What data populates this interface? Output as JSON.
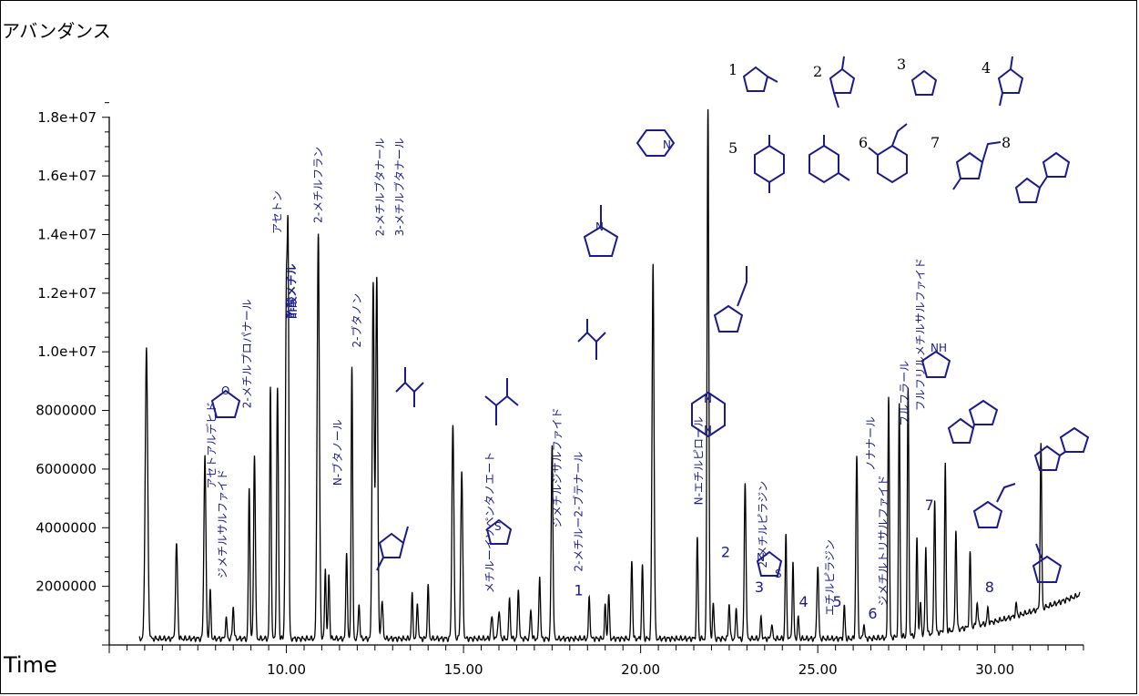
{
  "chart_data": {
    "type": "line",
    "title": "",
    "ylabel": "アバンダンス",
    "xlabel": "Time",
    "xlim": [
      5.0,
      32.5
    ],
    "ylim": [
      0,
      18500000
    ],
    "x_ticks": [
      "10.00",
      "15.00",
      "20.00",
      "25.00",
      "30.00"
    ],
    "x_tick_values": [
      10,
      15,
      20,
      25,
      30
    ],
    "y_ticks": [
      "2000000",
      "4000000",
      "6000000",
      "8000000",
      "1.0e+07",
      "1.2e+07",
      "1.4e+07",
      "1.6e+07",
      "1.8e+07"
    ],
    "y_tick_values": [
      2000000,
      4000000,
      6000000,
      8000000,
      10000000,
      12000000,
      14000000,
      16000000,
      18000000
    ],
    "line_color": "#000000",
    "annotation_color": "#1a1a8c",
    "peaks": [
      {
        "x": 6.05,
        "y": 9900000,
        "w": 0.05
      },
      {
        "x": 6.9,
        "y": 3200000,
        "w": 0.04
      },
      {
        "x": 7.7,
        "y": 6300000,
        "w": 0.04
      },
      {
        "x": 7.85,
        "y": 1600000,
        "w": 0.03
      },
      {
        "x": 8.3,
        "y": 700000,
        "w": 0.03
      },
      {
        "x": 8.5,
        "y": 1100000,
        "w": 0.03
      },
      {
        "x": 8.95,
        "y": 5100000,
        "w": 0.03
      },
      {
        "x": 9.1,
        "y": 6300000,
        "w": 0.035
      },
      {
        "x": 9.55,
        "y": 8600000,
        "w": 0.03
      },
      {
        "x": 9.75,
        "y": 8500000,
        "w": 0.035
      },
      {
        "x": 10.0,
        "y": 11700000,
        "w": 0.04
      },
      {
        "x": 10.05,
        "y": 11400000,
        "w": 0.03
      },
      {
        "x": 10.9,
        "y": 13800000,
        "w": 0.045
      },
      {
        "x": 11.1,
        "y": 2400000,
        "w": 0.03
      },
      {
        "x": 11.2,
        "y": 2200000,
        "w": 0.03
      },
      {
        "x": 11.7,
        "y": 3000000,
        "w": 0.03
      },
      {
        "x": 11.85,
        "y": 9300000,
        "w": 0.03
      },
      {
        "x": 12.05,
        "y": 1200000,
        "w": 0.03
      },
      {
        "x": 12.45,
        "y": 12100000,
        "w": 0.04
      },
      {
        "x": 12.55,
        "y": 12400000,
        "w": 0.04
      },
      {
        "x": 12.7,
        "y": 1200000,
        "w": 0.04
      },
      {
        "x": 13.55,
        "y": 1500000,
        "w": 0.03
      },
      {
        "x": 13.7,
        "y": 1200000,
        "w": 0.03
      },
      {
        "x": 14.0,
        "y": 1800000,
        "w": 0.03
      },
      {
        "x": 14.7,
        "y": 7300000,
        "w": 0.04
      },
      {
        "x": 14.95,
        "y": 5700000,
        "w": 0.04
      },
      {
        "x": 15.8,
        "y": 700000,
        "w": 0.04
      },
      {
        "x": 16.0,
        "y": 900000,
        "w": 0.04
      },
      {
        "x": 16.3,
        "y": 1400000,
        "w": 0.03
      },
      {
        "x": 16.55,
        "y": 1700000,
        "w": 0.03
      },
      {
        "x": 16.9,
        "y": 1000000,
        "w": 0.03
      },
      {
        "x": 17.15,
        "y": 2200000,
        "w": 0.03
      },
      {
        "x": 17.5,
        "y": 6600000,
        "w": 0.035
      },
      {
        "x": 18.55,
        "y": 1400000,
        "w": 0.03
      },
      {
        "x": 19.0,
        "y": 1100000,
        "w": 0.03
      },
      {
        "x": 19.1,
        "y": 1500000,
        "w": 0.03
      },
      {
        "x": 19.75,
        "y": 2700000,
        "w": 0.03
      },
      {
        "x": 20.05,
        "y": 2500000,
        "w": 0.03
      },
      {
        "x": 20.35,
        "y": 12800000,
        "w": 0.04
      },
      {
        "x": 21.6,
        "y": 3400000,
        "w": 0.03
      },
      {
        "x": 21.9,
        "y": 18100000,
        "w": 0.035
      },
      {
        "x": 22.05,
        "y": 1200000,
        "w": 0.03
      },
      {
        "x": 22.5,
        "y": 1200000,
        "w": 0.03
      },
      {
        "x": 22.7,
        "y": 1000000,
        "w": 0.03
      },
      {
        "x": 22.95,
        "y": 5300000,
        "w": 0.035
      },
      {
        "x": 23.4,
        "y": 700000,
        "w": 0.03
      },
      {
        "x": 23.7,
        "y": 500000,
        "w": 0.03
      },
      {
        "x": 24.1,
        "y": 3500000,
        "w": 0.03
      },
      {
        "x": 24.3,
        "y": 2600000,
        "w": 0.03
      },
      {
        "x": 24.45,
        "y": 700000,
        "w": 0.03
      },
      {
        "x": 25.0,
        "y": 2500000,
        "w": 0.035
      },
      {
        "x": 25.75,
        "y": 1100000,
        "w": 0.03
      },
      {
        "x": 26.1,
        "y": 6200000,
        "w": 0.035
      },
      {
        "x": 26.3,
        "y": 500000,
        "w": 0.03
      },
      {
        "x": 27.0,
        "y": 8300000,
        "w": 0.03
      },
      {
        "x": 27.3,
        "y": 7900000,
        "w": 0.03
      },
      {
        "x": 27.55,
        "y": 8400000,
        "w": 0.03
      },
      {
        "x": 27.8,
        "y": 3300000,
        "w": 0.03
      },
      {
        "x": 27.9,
        "y": 1100000,
        "w": 0.03
      },
      {
        "x": 28.05,
        "y": 3000000,
        "w": 0.03
      },
      {
        "x": 28.3,
        "y": 4600000,
        "w": 0.03
      },
      {
        "x": 28.6,
        "y": 5700000,
        "w": 0.03
      },
      {
        "x": 28.9,
        "y": 3400000,
        "w": 0.03
      },
      {
        "x": 29.3,
        "y": 2500000,
        "w": 0.03
      },
      {
        "x": 29.5,
        "y": 800000,
        "w": 0.03
      },
      {
        "x": 29.8,
        "y": 500000,
        "w": 0.03
      },
      {
        "x": 30.6,
        "y": 400000,
        "w": 0.03
      },
      {
        "x": 31.3,
        "y": 5600000,
        "w": 0.03
      }
    ],
    "annotations": [
      {
        "text": "アセトアルデヒド",
        "x": 8.0,
        "y": 8300000,
        "vertical": true
      },
      {
        "text": "ジメチルサルファイド",
        "x": 8.3,
        "y": 6000000,
        "vertical": true
      },
      {
        "text": "2-メチルプロパナール",
        "x": 9.0,
        "y": 11800000,
        "vertical": true
      },
      {
        "text": "アセトン",
        "x": 9.85,
        "y": 15500000,
        "vertical": true
      },
      {
        "text": "酢酸メチル",
        "x": 10.25,
        "y": 13000000,
        "vertical": true,
        "bold": true
      },
      {
        "text": "2-メチルフラン",
        "x": 11.0,
        "y": 17000000,
        "vertical": true
      },
      {
        "text": "N-ブタノール",
        "x": 11.55,
        "y": 7700000,
        "vertical": true
      },
      {
        "text": "2-ブタノン",
        "x": 12.1,
        "y": 12000000,
        "vertical": true
      },
      {
        "text": "2-メチルブタナール",
        "x": 12.75,
        "y": 17300000,
        "vertical": true
      },
      {
        "text": "3-メチルブタナール",
        "x": 13.3,
        "y": 17300000,
        "vertical": true
      },
      {
        "text": "メチルーイソペンタノエート",
        "x": 15.85,
        "y": 6600000,
        "vertical": true
      },
      {
        "text": "ジメチルジサルファイド",
        "x": 17.75,
        "y": 8100000,
        "vertical": true
      },
      {
        "text": "2-メチルー2-ブテナール",
        "x": 18.35,
        "y": 6600000,
        "vertical": true
      },
      {
        "text": "N-エチルピロール",
        "x": 21.75,
        "y": 7800000,
        "vertical": true
      },
      {
        "text": "2-メチルピラジン",
        "x": 23.55,
        "y": 5600000,
        "vertical": true
      },
      {
        "text": "エチルピラジン",
        "x": 25.45,
        "y": 3600000,
        "vertical": true
      },
      {
        "text": "ノナナール",
        "x": 26.6,
        "y": 7800000,
        "vertical": true
      },
      {
        "text": "ジメチルトリサルファイド",
        "x": 26.95,
        "y": 5800000,
        "vertical": true
      },
      {
        "text": "フルフラール",
        "x": 27.55,
        "y": 9700000,
        "vertical": true
      },
      {
        "text": "フルフリルメチルサルファイド",
        "x": 28.0,
        "y": 13200000,
        "vertical": true
      }
    ],
    "peak_numbers": [
      {
        "text": "1",
        "x": 18.25,
        "y": 1700000
      },
      {
        "text": "2",
        "x": 22.4,
        "y": 3000000
      },
      {
        "text": "3",
        "x": 23.35,
        "y": 1800000
      },
      {
        "text": "4",
        "x": 24.6,
        "y": 1300000
      },
      {
        "text": "5",
        "x": 25.55,
        "y": 1300000
      },
      {
        "text": "6",
        "x": 26.55,
        "y": 900000
      },
      {
        "text": "7",
        "x": 28.15,
        "y": 4600000
      },
      {
        "text": "8",
        "x": 29.85,
        "y": 1800000
      }
    ],
    "legend_numbers": [
      "1",
      "2",
      "3",
      "4",
      "5",
      "6",
      "7",
      "8"
    ]
  }
}
